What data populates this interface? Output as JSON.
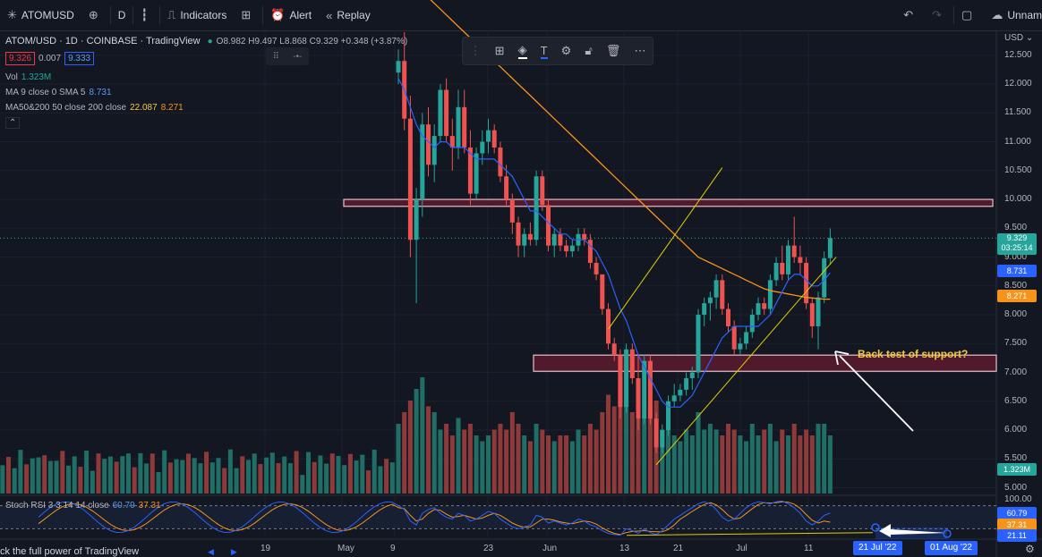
{
  "toolbar": {
    "symbol": "ATOMUSD",
    "interval": "D",
    "indicators_label": "Indicators",
    "alert_label": "Alert",
    "replay_label": "Replay",
    "layout_name": "Unnam"
  },
  "legend": {
    "title": "ATOM/USD · 1D · COINBASE · TradingView",
    "ohlc": "O8.982 H9.497 L8.868 C9.329 +0.348 (+3.87%)",
    "sell_price": "9.326",
    "spread": "0.007",
    "buy_price": "9.333",
    "vol_label": "Vol",
    "vol_value": "1.323M",
    "ma_label": "MA 9 close 0 SMA 5",
    "ma_value": "8.731",
    "ma50_label": "MA50&200 50 close 200 close",
    "ma50_value_1": "22.087",
    "ma50_value_2": "8.271",
    "stoch_label": "Stoch RSI 3 3 14 14 close",
    "stoch_k": "60.79",
    "stoch_d": "37.31"
  },
  "price_axis": {
    "currency": "USD",
    "ticks": [
      "12.500",
      "12.000",
      "11.500",
      "11.000",
      "10.500",
      "10.000",
      "9.500",
      "9.000",
      "8.500",
      "8.000",
      "7.500",
      "7.000",
      "6.500",
      "6.000",
      "5.500",
      "5.000"
    ],
    "last_price": "9.329",
    "countdown": "03:25:14",
    "ma_tag": "8.731",
    "ma50_tag": "8.271",
    "volume_tag": "1.323M"
  },
  "rsi_axis": {
    "ticks": [
      "100.00"
    ],
    "k_tag": "60.79",
    "d_tag": "37.31",
    "low_tag": "21.11"
  },
  "time_axis": {
    "labels": [
      "19",
      "May",
      "9",
      "23",
      "Jun",
      "13",
      "21",
      "Jul",
      "11"
    ],
    "date_tag_1": "21 Jul '22",
    "date_tag_2": "01 Aug '22"
  },
  "annotation": {
    "text": "Back test of support?"
  },
  "footer": {
    "upgrade_text": "ck the full power of TradingView"
  },
  "colors": {
    "up": "#26a69a",
    "down": "#ef5350",
    "ma9": "#2962ff",
    "ma50": "#f7931a",
    "zone_fill": "#5c1b2e",
    "zone_border": "#e8c2c8",
    "channel": "#e0d000"
  },
  "chart_data": {
    "type": "candlestick",
    "symbol": "ATOM/USD",
    "interval": "1D",
    "exchange": "COINBASE",
    "ylim": [
      4.9,
      12.9
    ],
    "candles": [
      {
        "o": 12.2,
        "h": 12.6,
        "l": 12.0,
        "c": 12.4
      },
      {
        "o": 12.4,
        "h": 12.9,
        "l": 11.2,
        "c": 11.4
      },
      {
        "o": 11.4,
        "h": 11.8,
        "l": 9.0,
        "c": 9.3
      },
      {
        "o": 9.3,
        "h": 10.2,
        "l": 8.2,
        "c": 10.0
      },
      {
        "o": 10.0,
        "h": 11.5,
        "l": 9.7,
        "c": 11.3
      },
      {
        "o": 11.3,
        "h": 11.6,
        "l": 10.4,
        "c": 10.6
      },
      {
        "o": 10.6,
        "h": 11.3,
        "l": 10.3,
        "c": 11.1
      },
      {
        "o": 11.1,
        "h": 12.0,
        "l": 11.0,
        "c": 11.9
      },
      {
        "o": 11.9,
        "h": 12.1,
        "l": 11.0,
        "c": 11.1
      },
      {
        "o": 11.1,
        "h": 11.4,
        "l": 10.5,
        "c": 10.9
      },
      {
        "o": 10.9,
        "h": 11.9,
        "l": 10.7,
        "c": 11.6
      },
      {
        "o": 11.6,
        "h": 11.9,
        "l": 10.8,
        "c": 10.9
      },
      {
        "o": 10.9,
        "h": 11.2,
        "l": 9.9,
        "c": 10.1
      },
      {
        "o": 10.1,
        "h": 10.9,
        "l": 10.0,
        "c": 10.8
      },
      {
        "o": 10.8,
        "h": 11.2,
        "l": 10.6,
        "c": 11.0
      },
      {
        "o": 11.0,
        "h": 11.4,
        "l": 10.8,
        "c": 11.2
      },
      {
        "o": 11.2,
        "h": 11.3,
        "l": 10.8,
        "c": 10.9
      },
      {
        "o": 10.9,
        "h": 11.0,
        "l": 10.3,
        "c": 10.4
      },
      {
        "o": 10.4,
        "h": 10.6,
        "l": 9.9,
        "c": 10.0
      },
      {
        "o": 10.0,
        "h": 10.1,
        "l": 9.4,
        "c": 9.6
      },
      {
        "o": 9.6,
        "h": 9.7,
        "l": 9.0,
        "c": 9.2
      },
      {
        "o": 9.2,
        "h": 9.5,
        "l": 9.0,
        "c": 9.4
      },
      {
        "o": 9.4,
        "h": 9.6,
        "l": 9.2,
        "c": 9.3
      },
      {
        "o": 9.3,
        "h": 10.5,
        "l": 9.2,
        "c": 10.4
      },
      {
        "o": 10.4,
        "h": 10.5,
        "l": 9.8,
        "c": 9.9
      },
      {
        "o": 9.9,
        "h": 10.0,
        "l": 9.1,
        "c": 9.2
      },
      {
        "o": 9.2,
        "h": 9.5,
        "l": 9.0,
        "c": 9.4
      },
      {
        "o": 9.4,
        "h": 9.5,
        "l": 9.1,
        "c": 9.2
      },
      {
        "o": 9.2,
        "h": 9.3,
        "l": 9.0,
        "c": 9.1
      },
      {
        "o": 9.1,
        "h": 9.3,
        "l": 9.0,
        "c": 9.2
      },
      {
        "o": 9.2,
        "h": 9.5,
        "l": 9.1,
        "c": 9.4
      },
      {
        "o": 9.4,
        "h": 9.5,
        "l": 9.2,
        "c": 9.3
      },
      {
        "o": 9.3,
        "h": 9.4,
        "l": 8.8,
        "c": 8.9
      },
      {
        "o": 8.9,
        "h": 9.0,
        "l": 8.6,
        "c": 8.7
      },
      {
        "o": 8.7,
        "h": 8.7,
        "l": 8.0,
        "c": 8.1
      },
      {
        "o": 8.1,
        "h": 8.2,
        "l": 7.4,
        "c": 7.5
      },
      {
        "o": 7.5,
        "h": 7.6,
        "l": 7.2,
        "c": 7.3
      },
      {
        "o": 7.3,
        "h": 7.4,
        "l": 6.2,
        "c": 6.4
      },
      {
        "o": 6.4,
        "h": 7.5,
        "l": 6.3,
        "c": 7.4
      },
      {
        "o": 7.4,
        "h": 7.5,
        "l": 6.8,
        "c": 6.9
      },
      {
        "o": 6.9,
        "h": 7.3,
        "l": 6.0,
        "c": 6.2
      },
      {
        "o": 6.2,
        "h": 7.3,
        "l": 6.1,
        "c": 7.2
      },
      {
        "o": 7.2,
        "h": 7.3,
        "l": 6.1,
        "c": 6.2
      },
      {
        "o": 6.2,
        "h": 6.3,
        "l": 5.6,
        "c": 5.7
      },
      {
        "o": 5.7,
        "h": 6.1,
        "l": 5.6,
        "c": 6.0
      },
      {
        "o": 6.0,
        "h": 6.6,
        "l": 5.9,
        "c": 6.5
      },
      {
        "o": 6.5,
        "h": 6.8,
        "l": 6.4,
        "c": 6.6
      },
      {
        "o": 6.6,
        "h": 6.8,
        "l": 6.5,
        "c": 6.7
      },
      {
        "o": 6.7,
        "h": 7.0,
        "l": 6.6,
        "c": 6.9
      },
      {
        "o": 6.9,
        "h": 7.1,
        "l": 6.7,
        "c": 7.0
      },
      {
        "o": 7.0,
        "h": 8.1,
        "l": 6.9,
        "c": 8.0
      },
      {
        "o": 8.0,
        "h": 8.3,
        "l": 7.8,
        "c": 8.2
      },
      {
        "o": 8.2,
        "h": 8.4,
        "l": 7.9,
        "c": 8.3
      },
      {
        "o": 8.3,
        "h": 8.7,
        "l": 8.1,
        "c": 8.6
      },
      {
        "o": 8.6,
        "h": 8.7,
        "l": 8.0,
        "c": 8.1
      },
      {
        "o": 8.1,
        "h": 8.2,
        "l": 7.7,
        "c": 7.8
      },
      {
        "o": 7.8,
        "h": 7.9,
        "l": 7.3,
        "c": 7.4
      },
      {
        "o": 7.4,
        "h": 7.6,
        "l": 7.3,
        "c": 7.5
      },
      {
        "o": 7.5,
        "h": 7.8,
        "l": 7.4,
        "c": 7.7
      },
      {
        "o": 7.7,
        "h": 8.1,
        "l": 7.6,
        "c": 8.0
      },
      {
        "o": 8.0,
        "h": 8.3,
        "l": 7.9,
        "c": 8.2
      },
      {
        "o": 8.2,
        "h": 8.3,
        "l": 8.0,
        "c": 8.1
      },
      {
        "o": 8.1,
        "h": 8.7,
        "l": 8.0,
        "c": 8.6
      },
      {
        "o": 8.6,
        "h": 9.0,
        "l": 8.5,
        "c": 8.9
      },
      {
        "o": 8.9,
        "h": 9.2,
        "l": 8.6,
        "c": 8.7
      },
      {
        "o": 8.7,
        "h": 9.3,
        "l": 8.6,
        "c": 9.2
      },
      {
        "o": 9.2,
        "h": 9.7,
        "l": 8.9,
        "c": 9.0
      },
      {
        "o": 9.0,
        "h": 9.2,
        "l": 8.7,
        "c": 8.9
      },
      {
        "o": 8.9,
        "h": 9.0,
        "l": 8.1,
        "c": 8.2
      },
      {
        "o": 8.2,
        "h": 8.3,
        "l": 7.6,
        "c": 7.8
      },
      {
        "o": 7.8,
        "h": 8.4,
        "l": 7.4,
        "c": 8.3
      },
      {
        "o": 8.3,
        "h": 9.1,
        "l": 8.2,
        "c": 8.98
      },
      {
        "o": 8.982,
        "h": 9.497,
        "l": 8.868,
        "c": 9.329
      }
    ],
    "volume": [
      0.6,
      0.7,
      0.8,
      0.9,
      1.0,
      0.75,
      0.7,
      0.55,
      0.6,
      0.5,
      0.65,
      0.55,
      0.6,
      0.5,
      0.45,
      0.5,
      0.55,
      0.6,
      0.55,
      0.7,
      0.6,
      0.5,
      0.45,
      0.6,
      0.55,
      0.5,
      0.45,
      0.5,
      0.5,
      0.45,
      0.55,
      0.5,
      0.6,
      0.55,
      0.7,
      0.85,
      0.75,
      1.0,
      0.8,
      0.7,
      0.9,
      0.65,
      0.75,
      0.8,
      0.55,
      0.6,
      0.5,
      0.45,
      0.55,
      0.5,
      0.7,
      0.55,
      0.6,
      0.55,
      0.5,
      0.6,
      0.55,
      0.5,
      0.45,
      0.6,
      0.5,
      0.55,
      0.6,
      0.45,
      0.55,
      0.5,
      0.6,
      0.5,
      0.55,
      0.5,
      0.6,
      0.6,
      0.5
    ],
    "ma9": [
      12.1,
      11.9,
      11.6,
      11.3,
      11.1,
      11.0,
      10.9,
      11.0,
      11.0,
      10.9,
      10.9,
      10.9,
      10.8,
      10.7,
      10.7,
      10.7,
      10.7,
      10.6,
      10.5,
      10.4,
      10.2,
      10.0,
      9.8,
      9.8,
      9.7,
      9.6,
      9.5,
      9.4,
      9.4,
      9.3,
      9.3,
      9.3,
      9.2,
      9.1,
      8.9,
      8.7,
      8.4,
      8.1,
      7.9,
      7.6,
      7.3,
      7.1,
      6.9,
      6.7,
      6.5,
      6.4,
      6.4,
      6.4,
      6.5,
      6.6,
      6.8,
      7.0,
      7.2,
      7.4,
      7.6,
      7.7,
      7.8,
      7.8,
      7.8,
      7.8,
      7.8,
      7.9,
      8.0,
      8.2,
      8.4,
      8.6,
      8.7,
      8.7,
      8.6,
      8.5,
      8.5,
      8.6,
      8.73
    ],
    "ma50": [
      14.0,
      13.9,
      13.8,
      13.7,
      13.6,
      13.5,
      13.4,
      13.3,
      13.2,
      13.1,
      13.0,
      12.9,
      12.8,
      12.7,
      12.6,
      12.5,
      12.4,
      12.3,
      12.2,
      12.1,
      12.0,
      11.9,
      11.8,
      11.7,
      11.6,
      11.5,
      11.4,
      11.3,
      11.2,
      11.1,
      11.0,
      10.9,
      10.8,
      10.7,
      10.6,
      10.5,
      10.4,
      10.3,
      10.2,
      10.1,
      10.0,
      9.9,
      9.8,
      9.7,
      9.6,
      9.5,
      9.4,
      9.3,
      9.2,
      9.1,
      9.0,
      8.95,
      8.9,
      8.85,
      8.8,
      8.75,
      8.7,
      8.65,
      8.6,
      8.55,
      8.5,
      8.45,
      8.42,
      8.4,
      8.38,
      8.36,
      8.34,
      8.32,
      8.3,
      8.29,
      8.28,
      8.27,
      8.271
    ],
    "stoch_k": [
      80,
      70,
      40,
      30,
      60,
      70,
      75,
      60,
      50,
      45,
      60,
      55,
      40,
      45,
      55,
      65,
      60,
      45,
      35,
      25,
      20,
      25,
      30,
      55,
      50,
      35,
      40,
      35,
      30,
      35,
      45,
      40,
      30,
      25,
      15,
      8,
      5,
      3,
      20,
      15,
      8,
      20,
      10,
      5,
      15,
      30,
      45,
      55,
      65,
      75,
      85,
      90,
      85,
      70,
      50,
      40,
      45,
      60,
      75,
      85,
      90,
      88,
      85,
      90,
      92,
      85,
      75,
      60,
      40,
      30,
      40,
      55,
      60.79
    ],
    "stoch_d": [
      75,
      72,
      55,
      40,
      45,
      60,
      70,
      68,
      58,
      50,
      52,
      55,
      50,
      45,
      48,
      55,
      60,
      55,
      45,
      35,
      28,
      24,
      25,
      35,
      45,
      45,
      42,
      38,
      35,
      33,
      37,
      40,
      38,
      32,
      22,
      14,
      8,
      5,
      10,
      13,
      14,
      15,
      13,
      12,
      12,
      18,
      30,
      45,
      55,
      65,
      75,
      83,
      88,
      82,
      70,
      55,
      45,
      48,
      60,
      72,
      83,
      88,
      87,
      88,
      90,
      89,
      84,
      73,
      57,
      42,
      35,
      40,
      37.31
    ],
    "horizontal_zones": [
      {
        "low": 9.88,
        "high": 10.0
      },
      {
        "low": 7.02,
        "high": 7.3
      }
    ],
    "channel": {
      "upper": [
        [
          35,
          7.75
        ],
        [
          54,
          10.55
        ]
      ],
      "lower": [
        [
          43,
          5.4
        ],
        [
          73,
          9.0
        ]
      ]
    },
    "annotation_text": "Back test of support?",
    "rsi_ylim": [
      0,
      100
    ]
  }
}
